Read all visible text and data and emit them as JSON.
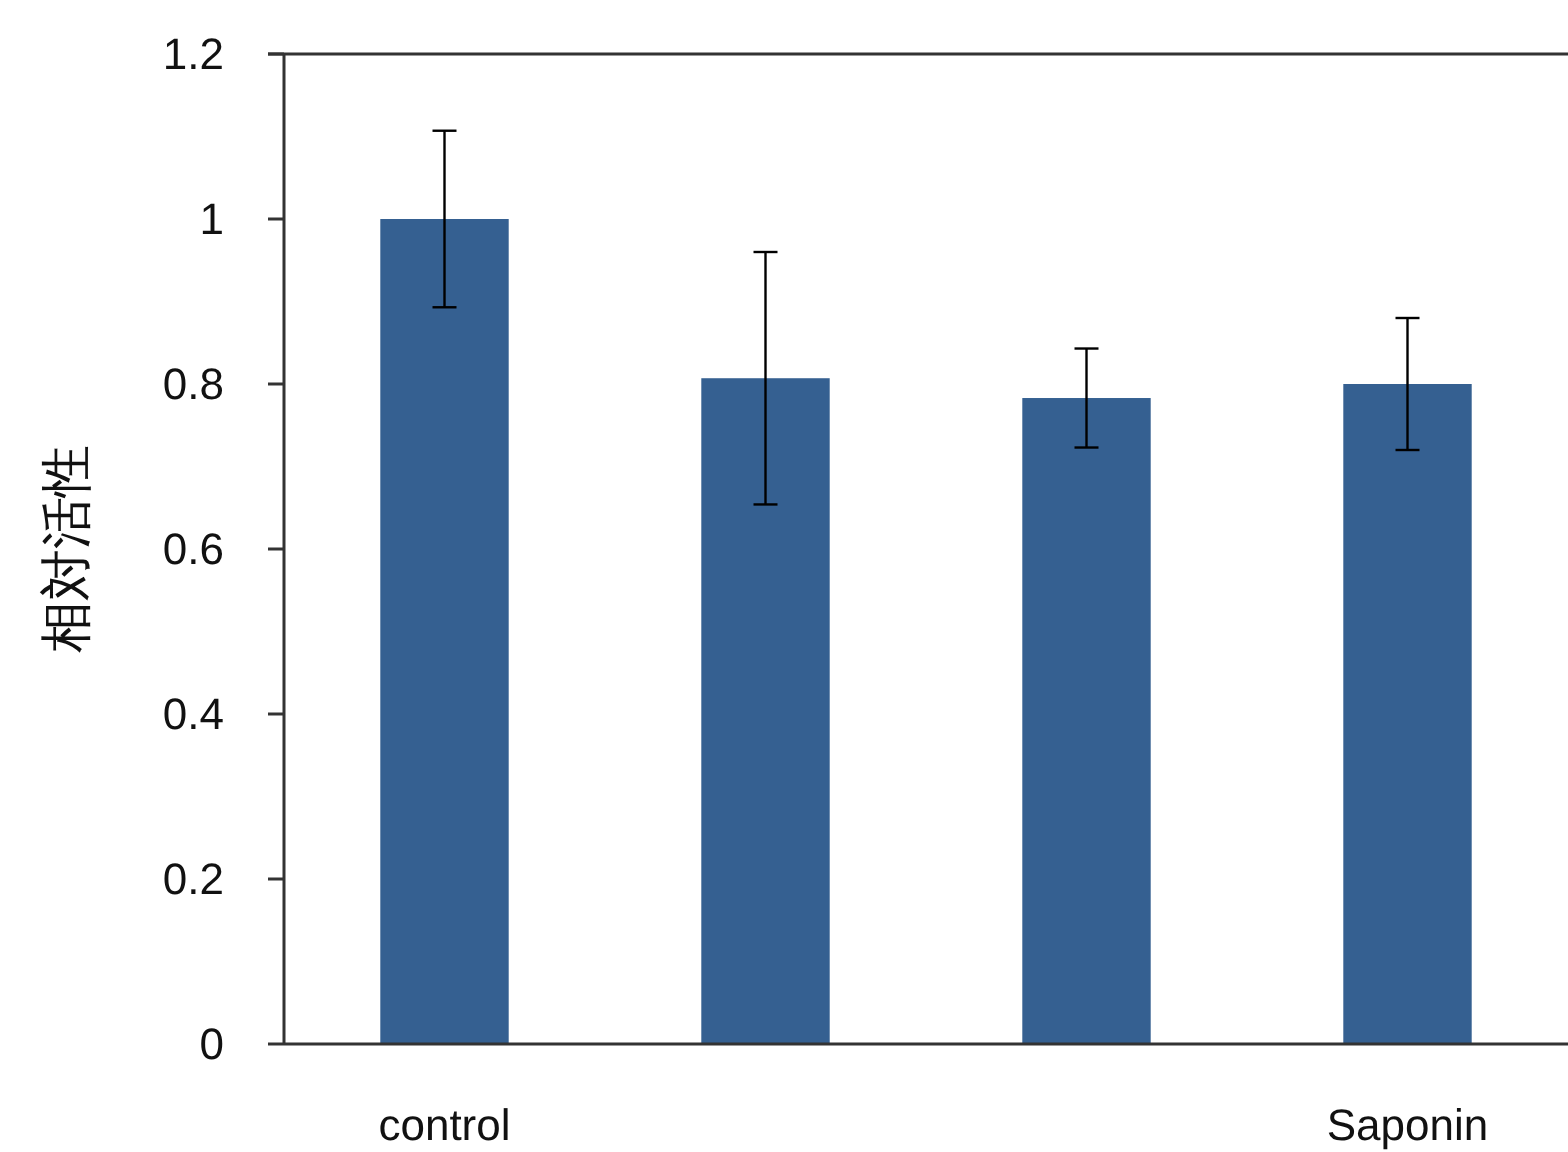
{
  "chart_data": {
    "type": "bar",
    "ylabel": "相対活性",
    "categories": [
      "control",
      null,
      null,
      "Saponin"
    ],
    "values": [
      1.0,
      0.807,
      0.783,
      0.8
    ],
    "errors": [
      0.107,
      0.153,
      0.06,
      0.08
    ],
    "color": "#356091",
    "ylim": [
      0,
      1.2
    ],
    "yticks": [
      0,
      {
        "value": 0.2,
        "label": "0.2"
      },
      {
        "value": 0.4,
        "label": "0.4"
      },
      {
        "value": 0.6,
        "label": "0.6"
      },
      {
        "value": 0.8,
        "label": "0.8"
      },
      1,
      {
        "value": 1.2,
        "label": "1.2"
      }
    ],
    "grid": false
  }
}
